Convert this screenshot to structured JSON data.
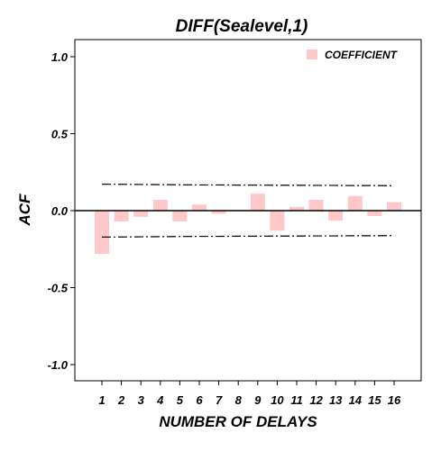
{
  "chart_data": {
    "type": "bar",
    "title": "DIFF(Sealevel,1)",
    "xlabel": "NUMBER OF DELAYS",
    "ylabel": "ACF",
    "ylim": [
      -1.1,
      1.1
    ],
    "yticks": [
      {
        "value": 1.0,
        "label": "1.0"
      },
      {
        "value": 0.5,
        "label": "0.5"
      },
      {
        "value": 0.0,
        "label": "0.0"
      },
      {
        "value": -0.5,
        "label": "-0.5"
      },
      {
        "value": -1.0,
        "label": "-1.0"
      }
    ],
    "categories": [
      "1",
      "2",
      "3",
      "4",
      "5",
      "6",
      "7",
      "8",
      "9",
      "10",
      "11",
      "12",
      "13",
      "14",
      "15",
      "16"
    ],
    "series": [
      {
        "name": "COEFFICIENT",
        "color": "#ffc8c8",
        "values": [
          -0.28,
          -0.07,
          -0.04,
          0.07,
          -0.07,
          0.04,
          -0.02,
          0.005,
          0.11,
          -0.13,
          0.025,
          0.07,
          -0.065,
          0.095,
          -0.035,
          0.055
        ]
      }
    ],
    "confidence_limits": {
      "upper": [
        0.172,
        0.171,
        0.17,
        0.169,
        0.168,
        0.167,
        0.167,
        0.166,
        0.166,
        0.165,
        0.165,
        0.164,
        0.164,
        0.163,
        0.163,
        0.162
      ],
      "lower": [
        -0.172,
        -0.171,
        -0.17,
        -0.169,
        -0.168,
        -0.167,
        -0.167,
        -0.166,
        -0.166,
        -0.165,
        -0.165,
        -0.164,
        -0.164,
        -0.163,
        -0.163,
        -0.162
      ],
      "style": "dash-dot",
      "color": "#000000"
    },
    "legend_position": "top-right",
    "grid": false,
    "zero_line": true
  }
}
